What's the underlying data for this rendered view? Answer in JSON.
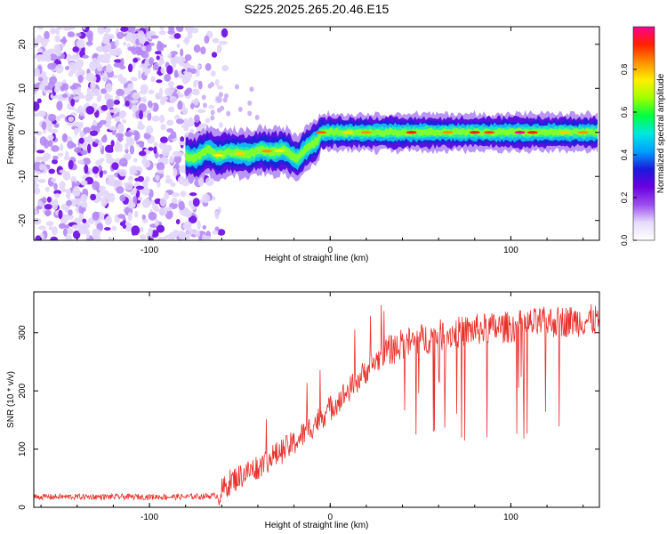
{
  "title": "S225.2025.265.20.46.E15",
  "colors": {
    "snr_line": "#e8302a",
    "axis": "#000000",
    "colormap": [
      "#ffffff",
      "#e6dcfa",
      "#9a4df0",
      "#6a00e0",
      "#1a1adc",
      "#00a0ff",
      "#00e8e0",
      "#00ff40",
      "#a0ff00",
      "#fff000",
      "#ff9000",
      "#ff2000",
      "#ff0090"
    ]
  },
  "chart_data": [
    {
      "type": "heatmap",
      "name": "spectrogram",
      "xlabel": "Height of straight line (km)",
      "ylabel": "Frequency (Hz)",
      "xlim": [
        -164,
        149
      ],
      "ylim": [
        -24.5,
        24
      ],
      "xticks": [
        -100,
        0,
        100
      ],
      "yticks": [
        -20,
        -10,
        0,
        10,
        20
      ],
      "ridge": {
        "description": "dominant frequency vs height",
        "x": [
          -80,
          -74,
          -68,
          -62,
          -56,
          -50,
          -44,
          -38,
          -32,
          -26,
          -22,
          -18,
          -14,
          -10,
          -7,
          -5,
          0,
          10,
          30,
          50,
          70,
          90,
          110,
          130,
          148
        ],
        "y": [
          -5.5,
          -5.8,
          -4,
          -5.2,
          -4.5,
          -4.8,
          -4.8,
          -4,
          -4.5,
          -4,
          -5,
          -6,
          -4,
          -2.5,
          -2,
          0,
          0,
          0,
          0,
          0,
          0,
          0,
          0,
          0,
          0
        ]
      },
      "noise_region_x": [
        -164,
        -70
      ],
      "colorbar": {
        "label": "Normalized spectral amplitude",
        "range": [
          0.0,
          1.0
        ],
        "ticks": [
          0.0,
          0.2,
          0.4,
          0.6,
          0.8
        ]
      }
    },
    {
      "type": "line",
      "name": "snr",
      "xlabel": "Height of straight line (km)",
      "ylabel": "SNR (10 * v/v)",
      "xlim": [
        -164,
        149
      ],
      "ylim": [
        0,
        370
      ],
      "xticks": [
        -100,
        0,
        100
      ],
      "yticks": [
        0,
        100,
        200,
        300
      ],
      "trend": {
        "x": [
          -164,
          -120,
          -80,
          -62,
          -55,
          -40,
          -20,
          -10,
          0,
          10,
          20,
          30,
          40,
          60,
          80,
          100,
          120,
          149
        ],
        "y": [
          18,
          18,
          18,
          20,
          45,
          70,
          110,
          140,
          170,
          200,
          235,
          265,
          280,
          295,
          305,
          310,
          318,
          322
        ]
      },
      "series": [
        {
          "name": "SNR",
          "color": "#e8302a"
        }
      ]
    }
  ]
}
